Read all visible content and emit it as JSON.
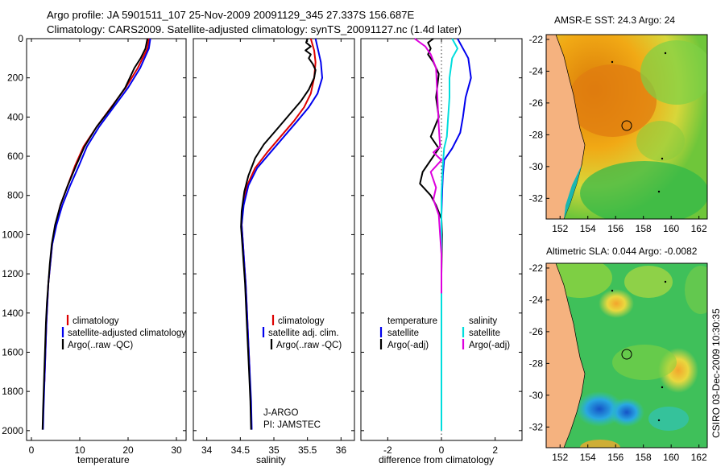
{
  "header": {
    "line1": "Argo profile: JA 5901511_107 25-Nov-2009 20091129_345 27.337S 156.687E",
    "line2": "Climatology: CARS2009. Satellite-adjusted climatology: synTS_20091127.nc (1.4d later)"
  },
  "colors": {
    "clim": "#dd0000",
    "sat": "#0000ee",
    "argo": "#000000",
    "sat_sal": "#00dddd",
    "argo_sal": "#dd00dd"
  },
  "depth_axis": {
    "ticks": [
      0,
      200,
      400,
      600,
      800,
      1000,
      1200,
      1400,
      1600,
      1800,
      2000
    ],
    "range": [
      0,
      2050
    ]
  },
  "chart_data": [
    {
      "type": "line",
      "xlabel": "temperature",
      "xlim": [
        -1,
        32
      ],
      "xticks": [
        0,
        10,
        20,
        30
      ],
      "legend": [
        "climatology",
        "satellite-adjusted climatology",
        "Argo(..raw -QC)"
      ],
      "series": [
        {
          "name": "climatology",
          "color": "clim",
          "points": [
            [
              24.3,
              0
            ],
            [
              24,
              50
            ],
            [
              22,
              150
            ],
            [
              19.5,
              250
            ],
            [
              16.5,
              350
            ],
            [
              13.5,
              450
            ],
            [
              10.8,
              550
            ],
            [
              9,
              650
            ],
            [
              7.5,
              750
            ],
            [
              6,
              850
            ],
            [
              5,
              950
            ],
            [
              4.3,
              1050
            ],
            [
              3.9,
              1150
            ],
            [
              3.5,
              1250
            ],
            [
              3.3,
              1350
            ],
            [
              3.1,
              1450
            ],
            [
              2.9,
              1600
            ],
            [
              2.7,
              1750
            ]
          ]
        },
        {
          "name": "satellite",
          "color": "sat",
          "points": [
            [
              24.6,
              0
            ],
            [
              24.3,
              50
            ],
            [
              22.5,
              150
            ],
            [
              20,
              250
            ],
            [
              17,
              350
            ],
            [
              14,
              450
            ],
            [
              11.5,
              550
            ],
            [
              9.8,
              650
            ],
            [
              8,
              750
            ],
            [
              6.4,
              850
            ],
            [
              5.2,
              950
            ],
            [
              4.3,
              1050
            ],
            [
              3.9,
              1150
            ],
            [
              3.5,
              1250
            ],
            [
              3.3,
              1350
            ],
            [
              3.1,
              1450
            ],
            [
              2.9,
              1600
            ],
            [
              2.7,
              1750
            ],
            [
              2.5,
              1900
            ],
            [
              2.4,
              1995
            ]
          ]
        },
        {
          "name": "argo",
          "color": "argo",
          "points": [
            [
              24,
              0
            ],
            [
              23.6,
              50
            ],
            [
              22.6,
              100
            ],
            [
              21.3,
              150
            ],
            [
              19.4,
              250
            ],
            [
              16.6,
              350
            ],
            [
              13.5,
              450
            ],
            [
              11,
              550
            ],
            [
              9.2,
              650
            ],
            [
              7.5,
              750
            ],
            [
              6,
              850
            ],
            [
              4.9,
              950
            ],
            [
              4.2,
              1050
            ],
            [
              3.8,
              1150
            ],
            [
              3.5,
              1250
            ],
            [
              3.2,
              1350
            ],
            [
              3.0,
              1450
            ],
            [
              2.8,
              1600
            ],
            [
              2.6,
              1750
            ],
            [
              2.4,
              1900
            ],
            [
              2.3,
              1995
            ]
          ]
        }
      ]
    },
    {
      "type": "line",
      "xlabel": "salinity",
      "xlim": [
        33.8,
        36.2
      ],
      "xticks": [
        34,
        34.5,
        35,
        35.5,
        36
      ],
      "legend": [
        "climatology",
        "satellite adj. clim.",
        "Argo(..raw -QC)"
      ],
      "annotation": [
        "J-ARGO",
        "PI: JAMSTEC"
      ],
      "series": [
        {
          "name": "climatology",
          "color": "clim",
          "points": [
            [
              35.55,
              0
            ],
            [
              35.6,
              60
            ],
            [
              35.62,
              120
            ],
            [
              35.6,
              200
            ],
            [
              35.55,
              280
            ],
            [
              35.45,
              350
            ],
            [
              35.3,
              420
            ],
            [
              35.1,
              500
            ],
            [
              34.9,
              580
            ],
            [
              34.72,
              660
            ],
            [
              34.6,
              750
            ],
            [
              34.54,
              850
            ],
            [
              34.52,
              950
            ],
            [
              34.54,
              1050
            ],
            [
              34.56,
              1150
            ],
            [
              34.58,
              1250
            ],
            [
              34.6,
              1400
            ],
            [
              34.62,
              1550
            ],
            [
              34.64,
              1700
            ]
          ]
        },
        {
          "name": "satellite",
          "color": "sat",
          "points": [
            [
              35.62,
              0
            ],
            [
              35.66,
              60
            ],
            [
              35.7,
              120
            ],
            [
              35.72,
              200
            ],
            [
              35.65,
              280
            ],
            [
              35.52,
              350
            ],
            [
              35.35,
              420
            ],
            [
              35.15,
              500
            ],
            [
              34.95,
              580
            ],
            [
              34.75,
              660
            ],
            [
              34.62,
              750
            ],
            [
              34.55,
              850
            ],
            [
              34.52,
              950
            ],
            [
              34.54,
              1050
            ],
            [
              34.56,
              1150
            ],
            [
              34.58,
              1250
            ],
            [
              34.6,
              1400
            ],
            [
              34.62,
              1550
            ],
            [
              34.64,
              1700
            ],
            [
              34.66,
              1850
            ],
            [
              34.67,
              1995
            ]
          ]
        },
        {
          "name": "argo",
          "color": "argo",
          "points": [
            [
              35.5,
              0
            ],
            [
              35.48,
              20
            ],
            [
              35.55,
              40
            ],
            [
              35.47,
              60
            ],
            [
              35.55,
              80
            ],
            [
              35.52,
              100
            ],
            [
              35.58,
              130
            ],
            [
              35.62,
              160
            ],
            [
              35.6,
              200
            ],
            [
              35.52,
              260
            ],
            [
              35.4,
              320
            ],
            [
              35.25,
              380
            ],
            [
              35.05,
              460
            ],
            [
              34.85,
              540
            ],
            [
              34.72,
              610
            ],
            [
              34.62,
              700
            ],
            [
              34.56,
              780
            ],
            [
              34.52,
              880
            ],
            [
              34.51,
              960
            ],
            [
              34.53,
              1050
            ],
            [
              34.55,
              1150
            ],
            [
              34.57,
              1250
            ],
            [
              34.59,
              1400
            ],
            [
              34.61,
              1550
            ],
            [
              34.63,
              1700
            ],
            [
              34.65,
              1850
            ],
            [
              34.66,
              1995
            ]
          ]
        }
      ]
    },
    {
      "type": "line",
      "xlabel": "difference from climatology",
      "xlim": [
        -3,
        3
      ],
      "xticks": [
        -2,
        0,
        2
      ],
      "legend_left_title": "temperature",
      "legend_left": [
        "satellite",
        "Argo(-adj)"
      ],
      "legend_right_title": "salinity",
      "legend_right": [
        "satellite",
        "Argo(-adj)"
      ],
      "series": [
        {
          "name": "temperature satellite",
          "color": "sat",
          "points": [
            [
              0.6,
              0
            ],
            [
              0.8,
              50
            ],
            [
              1.0,
              100
            ],
            [
              1.1,
              200
            ],
            [
              0.9,
              300
            ],
            [
              0.8,
              400
            ],
            [
              0.7,
              480
            ],
            [
              0.4,
              560
            ],
            [
              0.1,
              620
            ],
            [
              0.05,
              700
            ],
            [
              0.02,
              800
            ],
            [
              0,
              900
            ],
            [
              0,
              1000
            ],
            [
              0,
              1200
            ],
            [
              0,
              1500
            ],
            [
              0,
              1870
            ]
          ]
        },
        {
          "name": "temperature argo",
          "color": "argo",
          "points": [
            [
              -0.3,
              0
            ],
            [
              -0.5,
              20
            ],
            [
              -0.4,
              50
            ],
            [
              -0.5,
              80
            ],
            [
              -0.3,
              120
            ],
            [
              -0.1,
              180
            ],
            [
              -0.2,
              300
            ],
            [
              -0.1,
              400
            ],
            [
              -0.4,
              500
            ],
            [
              -0.1,
              560
            ],
            [
              -0.7,
              680
            ],
            [
              -0.8,
              740
            ],
            [
              -0.4,
              800
            ],
            [
              -0.2,
              850
            ],
            [
              0,
              920
            ],
            [
              0.02,
              1000
            ],
            [
              0,
              1200
            ],
            [
              0,
              1500
            ],
            [
              0,
              1870
            ]
          ]
        },
        {
          "name": "salinity satellite",
          "color": "sat_sal",
          "points": [
            [
              0.4,
              0
            ],
            [
              0.6,
              50
            ],
            [
              0.4,
              100
            ],
            [
              0.3,
              200
            ],
            [
              0.3,
              300
            ],
            [
              0.25,
              400
            ],
            [
              0.2,
              500
            ],
            [
              0.1,
              560
            ],
            [
              0.05,
              650
            ],
            [
              0,
              800
            ],
            [
              0,
              1000
            ],
            [
              0,
              1300
            ],
            [
              0,
              1600
            ],
            [
              0,
              2000
            ]
          ]
        },
        {
          "name": "salinity argo",
          "color": "argo_sal",
          "points": [
            [
              -1.0,
              0
            ],
            [
              -0.6,
              40
            ],
            [
              -0.4,
              80
            ],
            [
              -0.2,
              150
            ],
            [
              -0.15,
              300
            ],
            [
              -0.1,
              450
            ],
            [
              -0.05,
              550
            ],
            [
              -0.3,
              580
            ],
            [
              0,
              620
            ],
            [
              -0.4,
              680
            ],
            [
              -0.2,
              760
            ],
            [
              -0.3,
              820
            ],
            [
              -0.1,
              900
            ],
            [
              -0.05,
              1000
            ],
            [
              0,
              1100
            ],
            [
              0,
              1300
            ]
          ]
        }
      ]
    }
  ],
  "maps": [
    {
      "title": "AMSR-E SST: 24.3 Argo: 24",
      "xticks": [
        "152",
        "154",
        "156",
        "158",
        "160",
        "162"
      ],
      "yticks": [
        "-22",
        "-24",
        "-26",
        "-28",
        "-30",
        "-32"
      ],
      "marker": {
        "lon": 156.7,
        "lat": -27.3
      }
    },
    {
      "title": "Altimetric SLA: 0.044 Argo: -0.0082",
      "xticks": [
        "152",
        "154",
        "156",
        "158",
        "160",
        "162"
      ],
      "yticks": [
        "-22",
        "-24",
        "-26",
        "-28",
        "-30",
        "-32"
      ],
      "marker": {
        "lon": 156.7,
        "lat": -27.3
      }
    }
  ],
  "stamp": "CSIRO 03-Dec-2009 10:30:35"
}
